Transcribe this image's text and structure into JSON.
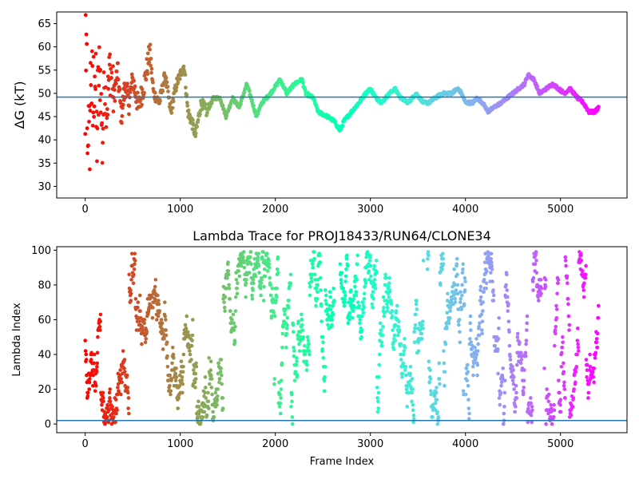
{
  "chart_data": [
    {
      "type": "scatter",
      "title": "",
      "xlabel": "",
      "ylabel": "ΔG (kT)",
      "xlim": [
        -300,
        5700
      ],
      "ylim": [
        27.5,
        67.5
      ],
      "xticks": [
        0,
        1000,
        2000,
        3000,
        4000,
        5000
      ],
      "xtick_labels": [
        "0",
        "1000",
        "2000",
        "3000",
        "4000",
        "5000"
      ],
      "yticks": [
        30,
        35,
        40,
        45,
        50,
        55,
        60,
        65
      ],
      "ytick_labels": [
        "30",
        "35",
        "40",
        "45",
        "50",
        "55",
        "60",
        "65"
      ],
      "hline": 49.2,
      "hline_color": "#1f77b4",
      "colormap": "rainbow (red at frame 0 to violet at final frame)",
      "n_frames": 5400,
      "trace_anchors": [
        [
          0,
          48
        ],
        [
          20,
          62
        ],
        [
          40,
          35
        ],
        [
          60,
          55
        ],
        [
          80,
          45
        ],
        [
          100,
          58
        ],
        [
          120,
          40
        ],
        [
          140,
          50
        ],
        [
          160,
          54
        ],
        [
          180,
          38
        ],
        [
          200,
          52
        ],
        [
          230,
          47
        ],
        [
          260,
          56
        ],
        [
          300,
          49
        ],
        [
          340,
          55
        ],
        [
          380,
          45
        ],
        [
          420,
          52
        ],
        [
          460,
          48
        ],
        [
          500,
          53
        ],
        [
          560,
          47
        ],
        [
          620,
          52
        ],
        [
          680,
          59
        ],
        [
          720,
          50
        ],
        [
          780,
          48
        ],
        [
          840,
          54
        ],
        [
          900,
          46
        ],
        [
          960,
          52
        ],
        [
          1040,
          56
        ],
        [
          1080,
          46
        ],
        [
          1120,
          44
        ],
        [
          1160,
          41
        ],
        [
          1220,
          48
        ],
        [
          1280,
          46
        ],
        [
          1350,
          49
        ],
        [
          1420,
          49
        ],
        [
          1480,
          45
        ],
        [
          1550,
          49
        ],
        [
          1620,
          47
        ],
        [
          1700,
          52
        ],
        [
          1760,
          48
        ],
        [
          1800,
          45
        ],
        [
          1860,
          48
        ],
        [
          1950,
          50
        ],
        [
          2050,
          53
        ],
        [
          2120,
          50
        ],
        [
          2200,
          52
        ],
        [
          2280,
          53
        ],
        [
          2320,
          50
        ],
        [
          2400,
          49
        ],
        [
          2450,
          46
        ],
        [
          2550,
          45
        ],
        [
          2620,
          44
        ],
        [
          2680,
          42
        ],
        [
          2720,
          44
        ],
        [
          2800,
          46
        ],
        [
          2880,
          48
        ],
        [
          2950,
          50
        ],
        [
          3000,
          51
        ],
        [
          3060,
          49
        ],
        [
          3120,
          48
        ],
        [
          3200,
          50
        ],
        [
          3260,
          51
        ],
        [
          3320,
          49
        ],
        [
          3400,
          48
        ],
        [
          3480,
          50
        ],
        [
          3560,
          48
        ],
        [
          3620,
          48
        ],
        [
          3680,
          49
        ],
        [
          3760,
          50
        ],
        [
          3850,
          50
        ],
        [
          3920,
          51
        ],
        [
          3960,
          50
        ],
        [
          4000,
          48
        ],
        [
          4080,
          48
        ],
        [
          4120,
          49
        ],
        [
          4180,
          48
        ],
        [
          4240,
          46
        ],
        [
          4300,
          47
        ],
        [
          4380,
          48
        ],
        [
          4440,
          49
        ],
        [
          4500,
          50
        ],
        [
          4560,
          51
        ],
        [
          4620,
          52
        ],
        [
          4660,
          54
        ],
        [
          4720,
          53
        ],
        [
          4780,
          50
        ],
        [
          4850,
          51
        ],
        [
          4920,
          52
        ],
        [
          4980,
          51
        ],
        [
          5040,
          50
        ],
        [
          5100,
          51
        ],
        [
          5180,
          49
        ],
        [
          5240,
          48
        ],
        [
          5300,
          46
        ],
        [
          5360,
          46
        ],
        [
          5400,
          47
        ]
      ]
    },
    {
      "type": "scatter",
      "title": "Lambda Trace for PROJ18433/RUN64/CLONE34",
      "xlabel": "Frame Index",
      "ylabel": "Lambda Index",
      "xlim": [
        -300,
        5700
      ],
      "ylim": [
        -5,
        102
      ],
      "xticks": [
        0,
        1000,
        2000,
        3000,
        4000,
        5000
      ],
      "xtick_labels": [
        "0",
        "1000",
        "2000",
        "3000",
        "4000",
        "5000"
      ],
      "yticks": [
        0,
        20,
        40,
        60,
        80,
        100
      ],
      "ytick_labels": [
        "0",
        "20",
        "40",
        "60",
        "80",
        "100"
      ],
      "hline": 2,
      "hline_color": "#1f77b4",
      "colormap": "rainbow (red at frame 0 to violet at final frame)",
      "n_frames": 5400,
      "value_range": [
        0,
        99
      ]
    }
  ]
}
